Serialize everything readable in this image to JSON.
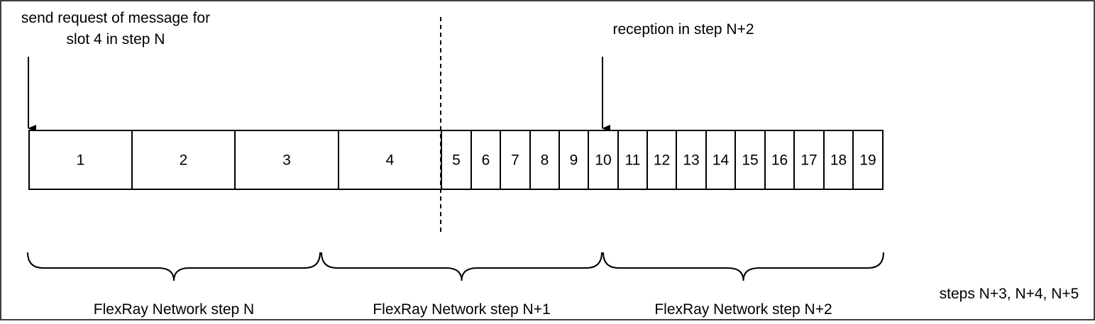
{
  "annotations": {
    "send_request_line1": "send request of message for",
    "send_request_line2": "slot 4 in step N",
    "reception": "reception in step N+2",
    "later_steps": "steps N+3, N+4, N+5"
  },
  "slots": [
    "1",
    "2",
    "3",
    "4",
    "5",
    "6",
    "7",
    "8",
    "9",
    "10",
    "11",
    "12",
    "13",
    "14",
    "15",
    "16",
    "17",
    "18",
    "19"
  ],
  "steps": [
    {
      "label": "FlexRay Network step N"
    },
    {
      "label": "FlexRay Network step N+1"
    },
    {
      "label": "FlexRay Network step N+2"
    }
  ],
  "colors": {
    "stroke": "#000000",
    "background": "#ffffff"
  }
}
